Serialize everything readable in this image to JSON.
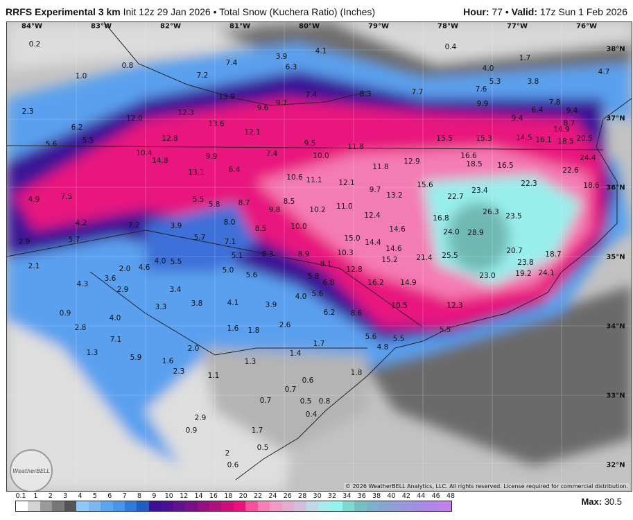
{
  "header": {
    "model": "RRFS Experimental 3 km",
    "init": "Init 12z 29 Jan 2026",
    "sep": "•",
    "product": "Total Snow (Kuchera Ratio) (Inches)",
    "hour_label": "Hour:",
    "hour": "77",
    "valid_label": "Valid:",
    "valid": "17z Sun 1 Feb 2026"
  },
  "lon_labels": [
    "84°W",
    "83°W",
    "82°W",
    "81°W",
    "80°W",
    "79°W",
    "78°W",
    "77°W",
    "76°W"
  ],
  "lat_labels": [
    "38°N",
    "37°N",
    "36°N",
    "35°N",
    "34°N",
    "33°N",
    "32°N"
  ],
  "map_values": [
    "0.2",
    "0.8",
    "1.0",
    "7.4",
    "3.9",
    "4.1",
    "6.3",
    "0.4",
    "1.7",
    "4.0",
    "5.3",
    "3.8",
    "4.7",
    "7.2",
    "13.9",
    "7.4",
    "8.3",
    "7.7",
    "7.6",
    "9.9",
    "6.4",
    "7.8",
    "9.4",
    "9.6",
    "9.7",
    "2.3",
    "12.0",
    "12.3",
    "13.6",
    "12.1",
    "9.4",
    "8.7",
    "6.2",
    "5.5",
    "5.6",
    "12.8",
    "9.5",
    "15.5",
    "15.3",
    "14.5",
    "16.1",
    "14.9",
    "18.5",
    "20.5",
    "10.4",
    "14.8",
    "11.8",
    "10.0",
    "7.4",
    "9.9",
    "16.6",
    "18.5",
    "16.5",
    "12.9",
    "11.8",
    "24.4",
    "22.6",
    "13.1",
    "6.4",
    "10.6",
    "11.1",
    "12.1",
    "9.7",
    "13.2",
    "15.6",
    "23.4",
    "22.3",
    "18.6",
    "4.9",
    "7.5",
    "5.5",
    "5.8",
    "8.7",
    "8.5",
    "9.8",
    "10.2",
    "11.0",
    "22.7",
    "26.3",
    "12.4",
    "16.8",
    "23.5",
    "4.2",
    "7.2",
    "3.9",
    "8.0",
    "8.5",
    "10.0",
    "14.6",
    "24.0",
    "28.9",
    "2.9",
    "5.7",
    "5.7",
    "7.1",
    "15.0",
    "14.4",
    "14.6",
    "20.7",
    "18.7",
    "10.3",
    "8.3",
    "8.9",
    "5.1",
    "15.2",
    "21.4",
    "25.5",
    "23.8",
    "2.1",
    "2.0",
    "4.6",
    "4.0",
    "5.5",
    "5.0",
    "5.6",
    "8.1",
    "12.8",
    "5.8",
    "19.2",
    "24.1",
    "23.0",
    "3.6",
    "4.3",
    "2.9",
    "3.4",
    "6.8",
    "16.2",
    "14.9",
    "4.0",
    "5.6",
    "3.3",
    "3.8",
    "4.1",
    "3.9",
    "10.5",
    "12.3",
    "0.9",
    "6.2",
    "8.6",
    "4.0",
    "2.6",
    "2.8",
    "1.6",
    "1.8",
    "5.6",
    "5.5",
    "5.5",
    "7.1",
    "4.8",
    "1.7",
    "2.0",
    "1.3",
    "5.9",
    "1.6",
    "2.3",
    "1.3",
    "1.4",
    "1.8",
    "1.1",
    "0.6",
    "0.7",
    "0.7",
    "0.5",
    "0.8",
    "0.4",
    "2.9",
    "0.9",
    "1.7",
    "0.5",
    "2",
    "0.6"
  ],
  "copyright": "© 2026 WeatherBELL Analytics, LLC. All rights reserved. License required for commercial distribution.",
  "logo_text": "WeatherBELL",
  "legend": {
    "labels": [
      "0.1",
      "1",
      "2",
      "3",
      "4",
      "5",
      "6",
      "7",
      "8",
      "9",
      "10",
      "12",
      "14",
      "16",
      "18",
      "20",
      "22",
      "24",
      "26",
      "28",
      "30",
      "32",
      "34",
      "36",
      "38",
      "40",
      "42",
      "44",
      "46",
      "48"
    ],
    "colors": [
      "#ffffff",
      "#d4d4d4",
      "#9a9a9a",
      "#777777",
      "#555555",
      "#8ec8f8",
      "#79b7f5",
      "#5aa5f0",
      "#4a94ea",
      "#2f78dc",
      "#1f5cc4",
      "#3c0f96",
      "#4e0f98",
      "#631292",
      "#7a0f8a",
      "#940f82",
      "#b0107e",
      "#d00f7c",
      "#f0107c",
      "#f8509a",
      "#f880b4",
      "#f29ac4",
      "#e6acd0",
      "#d4bcdc",
      "#c0d8ea",
      "#a8ecf0",
      "#90f4f0",
      "#80d8d4",
      "#74c0c4",
      "#7cb0cc",
      "#88a4d4",
      "#949cdc",
      "#9c94e0",
      "#a48ce4",
      "#b084e8",
      "#c080ee"
    ],
    "max_label": "Max:",
    "max": "30.5"
  }
}
